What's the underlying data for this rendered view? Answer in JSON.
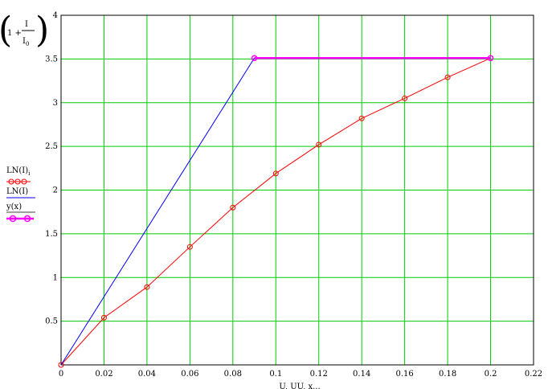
{
  "chart_data": {
    "type": "line",
    "xlim": [
      0,
      0.22
    ],
    "ylim": [
      0,
      4
    ],
    "xticks": [
      0,
      0.02,
      0.04,
      0.06,
      0.08,
      0.1,
      0.12,
      0.14,
      0.16,
      0.18,
      0.2,
      0.22
    ],
    "xtick_labels": [
      "0",
      "0.02",
      "0.04",
      "0.06",
      "0.08",
      "0.1",
      "0.12",
      "0.14",
      "0.16",
      "0.18",
      "0.2",
      "0.22"
    ],
    "yticks": [
      0.5,
      1,
      1.5,
      2,
      2.5,
      3,
      3.5,
      4
    ],
    "ytick_labels": [
      "0.5",
      "1",
      "1.5",
      "2",
      "2.5",
      "3",
      "3.5",
      "4"
    ],
    "grid": true,
    "ylabel": {
      "prefix": "1 +",
      "numerator": "I",
      "denominator": "I",
      "denominator_sub": "0"
    },
    "xlabel": "U, UU, x...",
    "series": [
      {
        "name": "LN(I)",
        "name_sub": "i",
        "color": "#ff0000",
        "markers": true,
        "line": true,
        "x": [
          0,
          0.02,
          0.04,
          0.06,
          0.08,
          0.1,
          0.12,
          0.14,
          0.16,
          0.18,
          0.2
        ],
        "y": [
          0,
          0.54,
          0.89,
          1.35,
          1.8,
          2.19,
          2.52,
          2.82,
          3.05,
          3.29,
          3.51
        ]
      },
      {
        "name": "LN(I)",
        "color": "#0000ff",
        "markers": false,
        "line": true,
        "x": [
          0,
          0.09
        ],
        "y": [
          0,
          3.51
        ]
      },
      {
        "name": "y(x)",
        "color": "#ff00ff",
        "markers": true,
        "line": true,
        "x": [
          0.09,
          0.2
        ],
        "y": [
          3.51,
          3.51
        ]
      }
    ]
  }
}
